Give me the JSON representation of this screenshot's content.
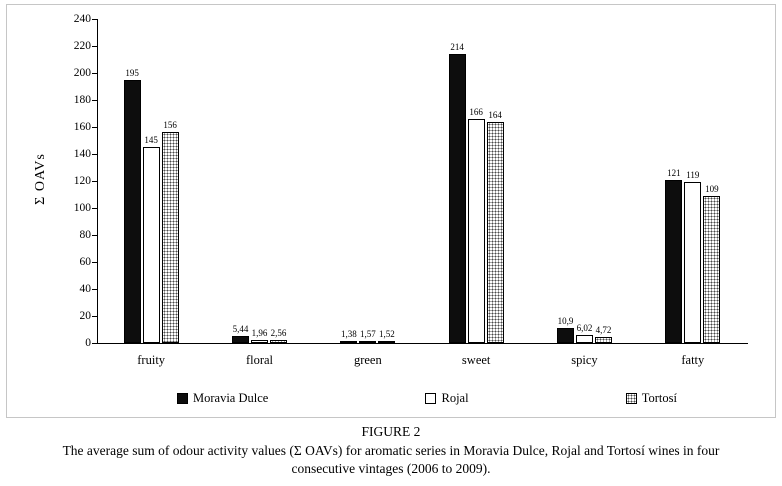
{
  "figure": {
    "number_label": "FIGURE 2",
    "caption_line1": "The average sum of odour activity values (Σ OAVs) for aromatic series in Moravia Dulce, Rojal and Tortosí wines in four",
    "caption_line2": "consecutive vintages (2006 to 2009)."
  },
  "chart_data": {
    "type": "bar",
    "title": "",
    "xlabel": "",
    "ylabel": "Σ OAVs",
    "ylim": [
      0,
      240
    ],
    "ytick_step": 20,
    "grid": false,
    "legend_position": "bottom",
    "categories": [
      "fruity",
      "floral",
      "green",
      "sweet",
      "spicy",
      "fatty"
    ],
    "series": [
      {
        "name": "Moravia Dulce",
        "style": "solid",
        "values": [
          195,
          5.44,
          1.38,
          214,
          10.9,
          121
        ],
        "labels": [
          "195",
          "5,44",
          "1,38",
          "214",
          "10,9",
          "121"
        ]
      },
      {
        "name": "Rojal",
        "style": "white",
        "values": [
          145,
          1.96,
          1.57,
          166,
          6.02,
          119
        ],
        "labels": [
          "145",
          "1,96",
          "1,57",
          "166",
          "6,02",
          "119"
        ]
      },
      {
        "name": "Tortosí",
        "style": "dotted",
        "values": [
          156,
          2.56,
          1.52,
          164,
          4.72,
          109
        ],
        "labels": [
          "156",
          "2,56",
          "1,52",
          "164",
          "4,72",
          "109"
        ]
      }
    ],
    "colors": {
      "bar_solid": "#0d0d0d",
      "bar_white": "#ffffff",
      "bar_dotted_dot": "#4a4a4a",
      "axis": "#000000"
    }
  }
}
